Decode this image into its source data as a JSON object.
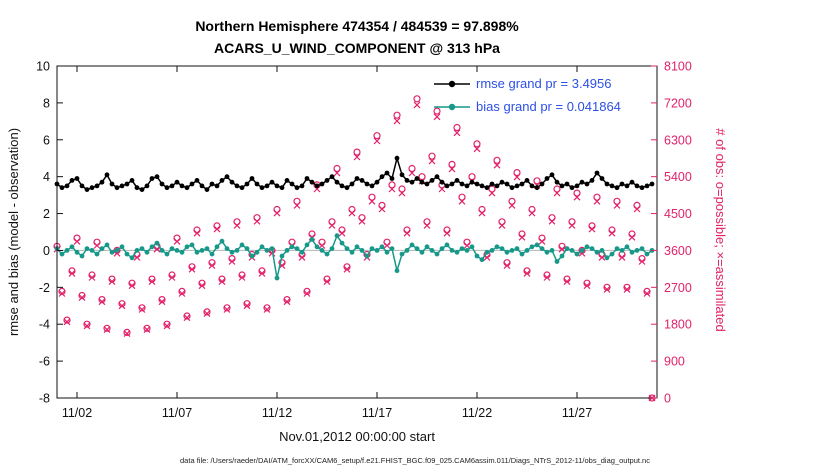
{
  "title_line1": "Northern Hemisphere 474354 / 484539 = 97.898%",
  "title_line2": "ACARS_U_WIND_COMPONENT @ 313 hPa",
  "footer": "data file: /Users/raeder/DAI/ATM_forcXX/CAM6_setup/f.e21.FHIST_BGC.f09_025.CAM6assim.011/Diags_NTrS_2012-11/obs_diag_output.nc",
  "colors": {
    "rmse": "#000000",
    "bias": "#17998a",
    "obs": "#e2226a",
    "zero_line": "#bdbdbd",
    "legend_text": "#2d50e6"
  },
  "chart_data": {
    "type": "line+scatter",
    "title": "Northern Hemisphere 474354 / 484539 = 97.898% | ACARS_U_WIND_COMPONENT @ 313 hPa",
    "xlabel": "Nov.01,2012 00:00:00 start",
    "ylabel_left": "rmse and bias (model - observation)",
    "ylabel_right": "# of obs: o=possible; ×=assimilated",
    "xlim": [
      0,
      30
    ],
    "ylim_left": [
      -8,
      10
    ],
    "ylim_right": [
      0,
      8100
    ],
    "yticks_left": [
      -8,
      -6,
      -4,
      -2,
      0,
      2,
      4,
      6,
      8,
      10
    ],
    "yticks_right": [
      0,
      900,
      1800,
      2700,
      3600,
      4500,
      5400,
      6300,
      7200,
      8100
    ],
    "xticks": [
      {
        "t": 1,
        "label": "11/02"
      },
      {
        "t": 6,
        "label": "11/07"
      },
      {
        "t": 11,
        "label": "11/12"
      },
      {
        "t": 16,
        "label": "11/17"
      },
      {
        "t": 21,
        "label": "11/22"
      },
      {
        "t": 26,
        "label": "11/27"
      }
    ],
    "x": {
      "start": 0,
      "step": 0.25
    },
    "legend": [
      {
        "label": "rmse grand pr = 3.4956",
        "series": "rmse"
      },
      {
        "label": "bias grand pr = 0.041864",
        "series": "bias"
      }
    ],
    "series": [
      {
        "name": "rmse",
        "axis": "left",
        "values": [
          3.6,
          3.4,
          3.5,
          3.8,
          3.9,
          3.5,
          3.3,
          3.4,
          3.5,
          3.7,
          4.1,
          3.6,
          3.4,
          3.5,
          3.6,
          3.8,
          3.4,
          3.3,
          3.5,
          3.9,
          4.0,
          3.6,
          3.4,
          3.5,
          3.7,
          3.5,
          3.4,
          3.6,
          3.8,
          3.5,
          3.3,
          3.6,
          3.5,
          3.8,
          4.0,
          3.7,
          3.5,
          3.4,
          3.6,
          3.9,
          3.6,
          3.4,
          3.5,
          3.7,
          3.5,
          3.4,
          3.8,
          3.6,
          3.4,
          3.5,
          3.9,
          3.7,
          3.5,
          3.6,
          3.8,
          4.0,
          3.7,
          3.5,
          3.4,
          3.6,
          3.9,
          3.8,
          3.6,
          3.5,
          3.7,
          4.0,
          4.2,
          3.9,
          5.0,
          4.1,
          3.8,
          3.7,
          3.9,
          3.7,
          3.6,
          3.8,
          4.0,
          3.7,
          3.5,
          3.6,
          3.8,
          3.6,
          3.5,
          3.7,
          3.6,
          3.5,
          3.4,
          3.6,
          3.5,
          3.7,
          3.6,
          3.4,
          3.5,
          3.6,
          3.8,
          3.5,
          3.4,
          3.6,
          3.9,
          4.1,
          3.7,
          3.5,
          3.6,
          3.4,
          3.5,
          3.7,
          3.6,
          3.8,
          4.2,
          3.9,
          3.6,
          3.5,
          3.4,
          3.6,
          3.5,
          3.7,
          3.5,
          3.4,
          3.5,
          3.6
        ]
      },
      {
        "name": "bias",
        "axis": "left",
        "values": [
          0.1,
          -0.2,
          0.0,
          0.2,
          -0.1,
          -0.3,
          0.1,
          0.0,
          -0.2,
          0.1,
          0.3,
          -0.1,
          0.0,
          0.2,
          -0.2,
          -0.4,
          0.0,
          0.1,
          -0.1,
          0.2,
          0.4,
          0.0,
          -0.2,
          0.1,
          0.0,
          -0.1,
          0.2,
          0.3,
          -0.1,
          0.0,
          0.1,
          -0.2,
          0.2,
          0.5,
          0.1,
          -0.1,
          0.0,
          0.3,
          0.1,
          -0.3,
          -0.1,
          0.2,
          0.0,
          0.1,
          -1.5,
          -0.3,
          0.0,
          0.2,
          0.1,
          -0.1,
          0.3,
          0.6,
          0.2,
          0.0,
          -0.2,
          0.1,
          0.8,
          0.4,
          0.1,
          -0.1,
          0.2,
          0.0,
          -0.3,
          0.1,
          0.0,
          0.2,
          -0.1,
          0.1,
          -1.1,
          -0.2,
          0.0,
          0.3,
          0.1,
          -0.1,
          0.2,
          0.0,
          -0.2,
          0.1,
          0.3,
          0.0,
          -0.1,
          0.1,
          0.0,
          0.2,
          -0.3,
          -0.5,
          -0.1,
          0.0,
          0.2,
          0.1,
          -0.1,
          0.0,
          0.1,
          -0.2,
          0.0,
          0.2,
          0.3,
          0.1,
          -0.1,
          0.0,
          -0.6,
          -0.3,
          0.1,
          0.0,
          -0.2,
          0.0,
          0.2,
          0.1,
          -0.1,
          0.0,
          -0.4,
          -0.2,
          0.1,
          0.0,
          0.2,
          -0.1,
          0.0,
          0.1,
          -0.2,
          0.0
        ]
      },
      {
        "name": "possible",
        "axis": "right",
        "marker": "o",
        "values": [
          3700,
          2600,
          1900,
          3100,
          3900,
          2500,
          1800,
          3000,
          3800,
          2400,
          1700,
          2900,
          3600,
          2300,
          1600,
          2800,
          3500,
          2200,
          1700,
          2900,
          3700,
          2400,
          1800,
          3000,
          3900,
          2600,
          2000,
          3200,
          4100,
          2800,
          2100,
          3300,
          4200,
          2900,
          2200,
          3400,
          4300,
          3000,
          2300,
          3500,
          4400,
          3100,
          2200,
          3600,
          4600,
          3300,
          2400,
          3800,
          4800,
          3500,
          2600,
          4000,
          5200,
          3800,
          2900,
          4300,
          5600,
          4100,
          3200,
          4600,
          6000,
          4400,
          3500,
          4900,
          6400,
          4700,
          3800,
          5200,
          6900,
          5100,
          4100,
          5600,
          7300,
          5400,
          4300,
          5900,
          7000,
          5200,
          4100,
          5700,
          6600,
          4900,
          3800,
          5400,
          6200,
          4600,
          3500,
          5100,
          5800,
          4300,
          3300,
          4800,
          5500,
          4000,
          3100,
          4600,
          5300,
          3900,
          3000,
          4400,
          5100,
          3700,
          2900,
          4300,
          5000,
          3600,
          2800,
          4200,
          4900,
          3500,
          2700,
          4100,
          4800,
          3500,
          2700,
          4000,
          4700,
          3400,
          2600,
          0
        ]
      },
      {
        "name": "assimilated",
        "axis": "right",
        "marker": "x",
        "values": [
          3630,
          2550,
          1860,
          3040,
          3820,
          2450,
          1760,
          2940,
          3720,
          2350,
          1670,
          2840,
          3530,
          2250,
          1570,
          2740,
          3430,
          2160,
          1670,
          2840,
          3630,
          2350,
          1760,
          2940,
          3820,
          2550,
          1960,
          3140,
          4020,
          2740,
          2060,
          3230,
          4120,
          2840,
          2160,
          3330,
          4210,
          2940,
          2250,
          3430,
          4310,
          3040,
          2160,
          3530,
          4510,
          3230,
          2350,
          3720,
          4700,
          3430,
          2550,
          3920,
          5100,
          3720,
          2840,
          4210,
          5490,
          4020,
          3140,
          4510,
          5880,
          4310,
          3430,
          4800,
          6270,
          4610,
          3720,
          5100,
          6760,
          5000,
          4020,
          5490,
          7150,
          5290,
          4210,
          5780,
          6860,
          5100,
          4020,
          5590,
          6470,
          4800,
          3720,
          5290,
          6080,
          4510,
          3430,
          5000,
          5680,
          4210,
          3230,
          4700,
          5390,
          3920,
          3040,
          4510,
          5190,
          3820,
          2940,
          4310,
          5000,
          3630,
          2840,
          4210,
          4900,
          3530,
          2740,
          4120,
          4800,
          3430,
          2650,
          4020,
          4700,
          3430,
          2650,
          3920,
          4610,
          3330,
          2550,
          0
        ]
      }
    ]
  }
}
